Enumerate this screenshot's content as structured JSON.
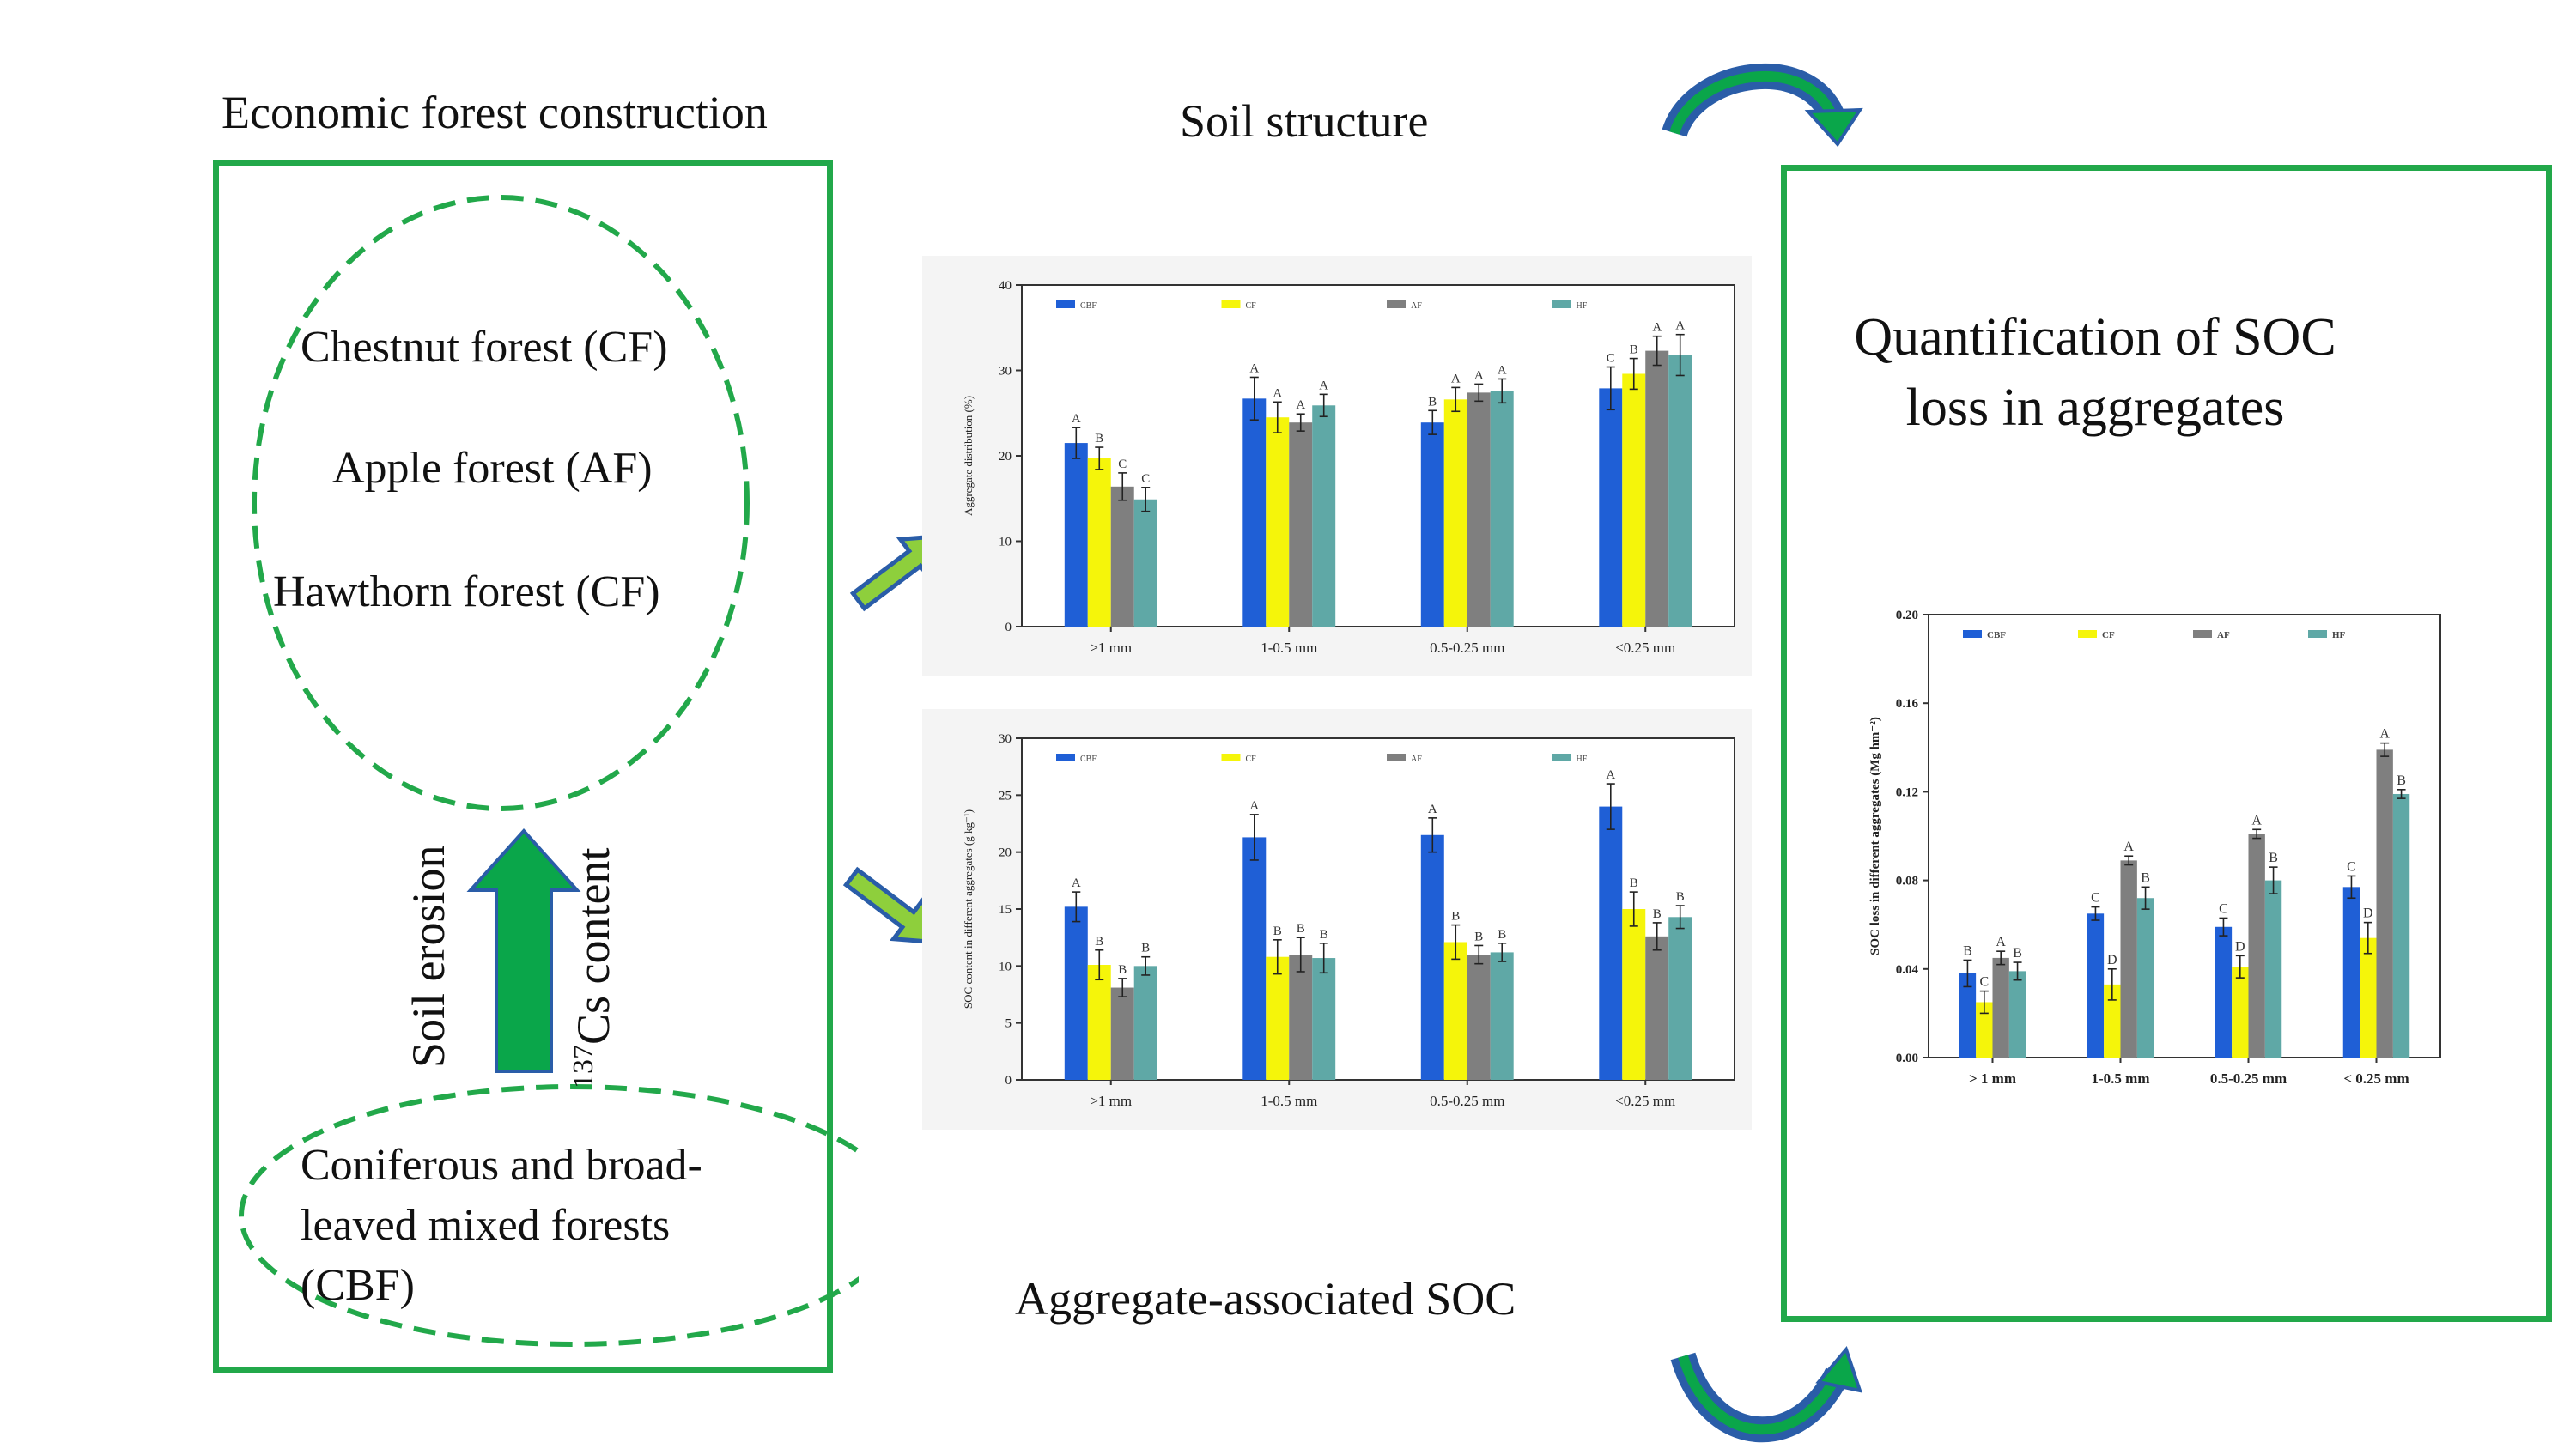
{
  "left_panel": {
    "title": "Economic forest construction",
    "forests": [
      "Chestnut forest (CF)",
      "Apple forest (AF)",
      "Hawthorn forest (CF)"
    ],
    "arrow_left_label": "Soil erosion",
    "arrow_right_label_sup": "137",
    "arrow_right_label": "Cs content",
    "base_forest_lines": [
      "Coniferous and broad-",
      "leaved mixed  forests",
      "(CBF)"
    ]
  },
  "middle_panel": {
    "top_title": "Soil structure",
    "bottom_title": "Aggregate-associated SOC"
  },
  "right_panel": {
    "title_line1": "Quantification  of SOC",
    "title_line2": "loss in aggregates"
  },
  "colors": {
    "frame_green": "#22a84a",
    "cbf": "#1f5fd6",
    "cf": "#f5f50a",
    "af": "#7f7f7f",
    "hf": "#5fa8a6",
    "arrow_green": "#0aa64a",
    "arrow_blue": "#2a5da8"
  },
  "chart_data": [
    {
      "id": "aggregate-distribution",
      "type": "bar",
      "title": "",
      "xlabel": "",
      "ylabel": "Aggregate distribution (%)",
      "ylim": [
        0,
        40
      ],
      "yticks": [
        0,
        10,
        20,
        30,
        40
      ],
      "legend_position": "top",
      "categories": [
        ">1 mm",
        "1-0.5 mm",
        "0.5-0.25 mm",
        "<0.25 mm"
      ],
      "series": [
        {
          "name": "CBF",
          "values": [
            21.5,
            26.7,
            23.9,
            27.9
          ],
          "errors": [
            1.8,
            2.5,
            1.4,
            2.5
          ],
          "letters": [
            "A",
            "A",
            "B",
            "C"
          ]
        },
        {
          "name": "CF",
          "values": [
            19.7,
            24.5,
            26.6,
            29.6
          ],
          "errors": [
            1.3,
            1.8,
            1.4,
            1.8
          ],
          "letters": [
            "B",
            "A",
            "A",
            "B"
          ]
        },
        {
          "name": "AF",
          "values": [
            16.4,
            23.9,
            27.4,
            32.3
          ],
          "errors": [
            1.6,
            1.0,
            1.0,
            1.7
          ],
          "letters": [
            "C",
            "A",
            "A",
            "A"
          ]
        },
        {
          "name": "HF",
          "values": [
            14.9,
            25.9,
            27.6,
            31.8
          ],
          "errors": [
            1.4,
            1.3,
            1.4,
            2.4
          ],
          "letters": [
            "C",
            "A",
            "A",
            "A"
          ]
        }
      ]
    },
    {
      "id": "soc-content",
      "type": "bar",
      "title": "",
      "xlabel": "",
      "ylabel": "SOC content in different aggregates (g kg⁻¹)",
      "ylim": [
        0,
        30
      ],
      "yticks": [
        0,
        5,
        10,
        15,
        20,
        25,
        30
      ],
      "legend_position": "top",
      "categories": [
        ">1 mm",
        "1-0.5 mm",
        "0.5-0.25 mm",
        "<0.25 mm"
      ],
      "series": [
        {
          "name": "CBF",
          "values": [
            15.2,
            21.3,
            21.5,
            24.0
          ],
          "errors": [
            1.3,
            2.0,
            1.5,
            2.0
          ],
          "letters": [
            "A",
            "A",
            "A",
            "A"
          ]
        },
        {
          "name": "CF",
          "values": [
            10.1,
            10.8,
            12.1,
            15.0
          ],
          "errors": [
            1.3,
            1.5,
            1.5,
            1.5
          ],
          "letters": [
            "B",
            "B",
            "B",
            "B"
          ]
        },
        {
          "name": "AF",
          "values": [
            8.1,
            11.0,
            11.0,
            12.6
          ],
          "errors": [
            0.8,
            1.5,
            0.8,
            1.2
          ],
          "letters": [
            "B",
            "B",
            "B",
            "B"
          ]
        },
        {
          "name": "HF",
          "values": [
            10.0,
            10.7,
            11.2,
            14.3
          ],
          "errors": [
            0.8,
            1.3,
            0.8,
            1.0
          ],
          "letters": [
            "B",
            "B",
            "B",
            "B"
          ]
        }
      ]
    },
    {
      "id": "soc-loss",
      "type": "bar",
      "title": "",
      "xlabel": "",
      "ylabel": "SOC loss in different aggregates (Mg hm⁻²)",
      "ylim": [
        0,
        0.2
      ],
      "yticks": [
        "0.00",
        "0.04",
        "0.08",
        "0.12",
        "0.16",
        "0.20"
      ],
      "legend_position": "top",
      "categories": [
        "> 1 mm",
        "1-0.5 mm",
        "0.5-0.25 mm",
        "< 0.25 mm"
      ],
      "series": [
        {
          "name": "CBF",
          "values": [
            0.038,
            0.065,
            0.059,
            0.077
          ],
          "errors": [
            0.006,
            0.003,
            0.004,
            0.005
          ],
          "letters": [
            "B",
            "C",
            "C",
            "C"
          ]
        },
        {
          "name": "CF",
          "values": [
            0.025,
            0.033,
            0.041,
            0.054
          ],
          "errors": [
            0.005,
            0.007,
            0.005,
            0.007
          ],
          "letters": [
            "C",
            "D",
            "D",
            "D"
          ]
        },
        {
          "name": "AF",
          "values": [
            0.045,
            0.089,
            0.101,
            0.139
          ],
          "errors": [
            0.003,
            0.002,
            0.002,
            0.003
          ],
          "letters": [
            "A",
            "A",
            "A",
            "A"
          ]
        },
        {
          "name": "HF",
          "values": [
            0.039,
            0.072,
            0.08,
            0.119
          ],
          "errors": [
            0.004,
            0.005,
            0.006,
            0.002
          ],
          "letters": [
            "B",
            "B",
            "B",
            "B"
          ]
        }
      ]
    }
  ]
}
